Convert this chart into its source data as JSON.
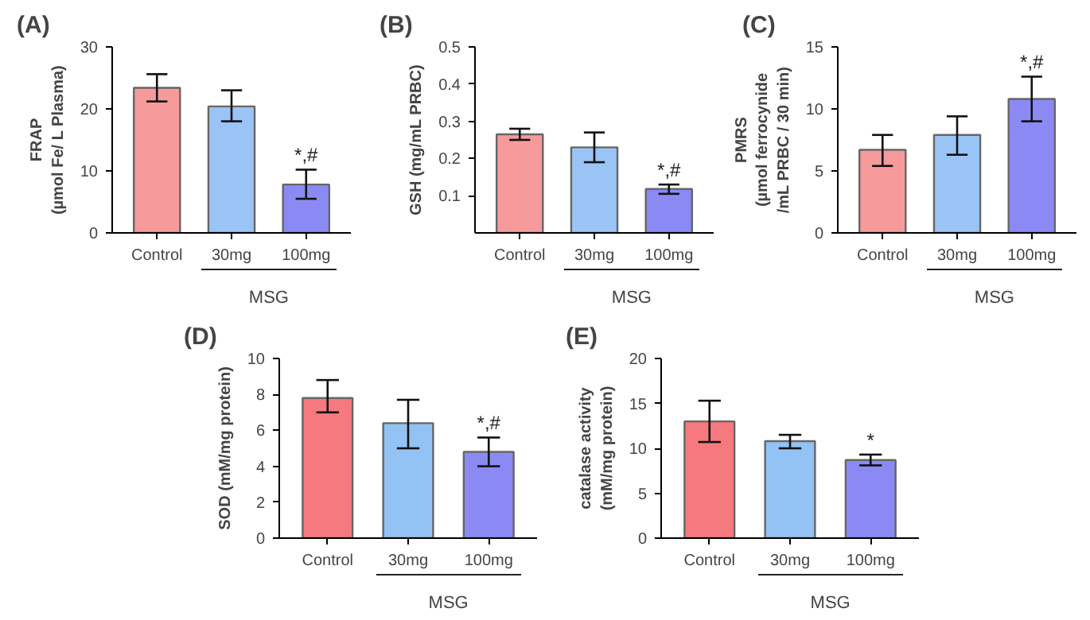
{
  "chart_data": [
    {
      "type": "bar",
      "title": "(A)",
      "ylabel": "FRAP\n(µmol Fe/ L Plasma)",
      "categories": [
        "Control",
        "30mg",
        "100mg"
      ],
      "values": [
        23.4,
        20.4,
        7.8
      ],
      "errors": [
        [
          21.2,
          25.6
        ],
        [
          18.0,
          23.0
        ],
        [
          5.5,
          10.2
        ]
      ],
      "colors": [
        "#f79a9c",
        "#99c4f5",
        "#8b8af5"
      ],
      "ylim": [
        0,
        30
      ],
      "yticks": [
        0,
        10,
        20,
        30
      ],
      "annotations": [
        {
          "text": "*,#",
          "x": "100mg",
          "y": 10.2
        },
        "MSG"
      ]
    },
    {
      "type": "bar",
      "title": "(B)",
      "ylabel": "GSH (mg/mL PRBC)",
      "categories": [
        "Control",
        "30mg",
        "100mg"
      ],
      "values": [
        0.265,
        0.23,
        0.118
      ],
      "errors": [
        [
          0.25,
          0.28
        ],
        [
          0.19,
          0.27
        ],
        [
          0.105,
          0.13
        ]
      ],
      "colors": [
        "#f79a9c",
        "#99c4f5",
        "#8b8af5"
      ],
      "ylim": [
        0,
        0.5
      ],
      "yticks": [
        0.1,
        0.2,
        0.3,
        0.4,
        0.5
      ],
      "annotations": [
        {
          "text": "*,#",
          "x": "100mg",
          "y": 0.13
        },
        "MSG"
      ]
    },
    {
      "type": "bar",
      "title": "(C)",
      "ylabel": "PMRS\n(µmol ferrocynide\n/mL PRBC / 30 min)",
      "categories": [
        "Control",
        "30mg",
        "100mg"
      ],
      "values": [
        6.7,
        7.9,
        10.8
      ],
      "errors": [
        [
          5.4,
          7.9
        ],
        [
          6.3,
          9.4
        ],
        [
          9.0,
          12.6
        ]
      ],
      "colors": [
        "#f79a9c",
        "#99c4f5",
        "#8b8af5"
      ],
      "ylim": [
        0,
        15
      ],
      "yticks": [
        0,
        5,
        10,
        15
      ],
      "annotations": [
        {
          "text": "*,#",
          "x": "100mg",
          "y": 12.6
        },
        "MSG"
      ]
    },
    {
      "type": "bar",
      "title": "(D)",
      "ylabel": "SOD (mM/mg protein)",
      "categories": [
        "Control",
        "30mg",
        "100mg"
      ],
      "values": [
        7.8,
        6.4,
        4.8
      ],
      "errors": [
        [
          7.0,
          8.8
        ],
        [
          5.0,
          7.7
        ],
        [
          4.0,
          5.6
        ]
      ],
      "colors": [
        "#f5797e",
        "#93c2f5",
        "#8b8af5"
      ],
      "ylim": [
        0,
        10
      ],
      "yticks": [
        0,
        2,
        4,
        6,
        8,
        10
      ],
      "annotations": [
        {
          "text": "*,#",
          "x": "100mg",
          "y": 5.6
        },
        "MSG"
      ]
    },
    {
      "type": "bar",
      "title": "(E)",
      "ylabel": "catalase activity\n(mM/mg protein)",
      "categories": [
        "Control",
        "30mg",
        "100mg"
      ],
      "values": [
        13.0,
        10.8,
        8.7
      ],
      "errors": [
        [
          10.7,
          15.3
        ],
        [
          10.0,
          11.5
        ],
        [
          8.1,
          9.3
        ]
      ],
      "colors": [
        "#f5797e",
        "#93c2f5",
        "#8b8af5"
      ],
      "ylim": [
        0,
        20
      ],
      "yticks": [
        0,
        5,
        10,
        15,
        20
      ],
      "annotations": [
        {
          "text": "*",
          "x": "100mg",
          "y": 9.3
        },
        "MSG"
      ]
    }
  ]
}
